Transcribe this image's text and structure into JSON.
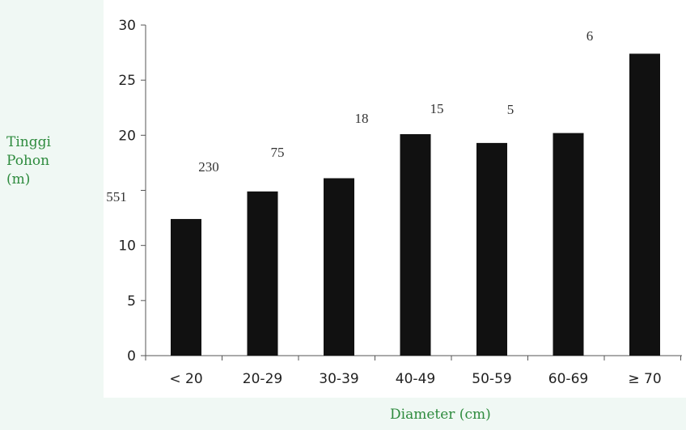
{
  "chart_data": {
    "type": "bar",
    "categories": [
      "< 20",
      "20-29",
      "30-39",
      "40-49",
      "50-59",
      "60-69",
      "≥ 70"
    ],
    "values": [
      12.4,
      14.9,
      16.1,
      20.1,
      19.3,
      20.2,
      27.4
    ],
    "annotations": [
      "551",
      "230",
      "75",
      "18",
      "15",
      "5",
      "6"
    ],
    "ylabel_lines": [
      "Tinggi",
      "Pohon",
      "(m)"
    ],
    "xlabel": "Diameter (cm)",
    "ylim": [
      0,
      30
    ],
    "yticks": [
      0,
      5,
      10,
      15,
      20,
      25,
      30
    ],
    "yticklabels": [
      "0",
      "5",
      "10",
      "",
      "20",
      "25",
      "30"
    ],
    "bar_color": "#111111",
    "label_color": "#2e8b3e",
    "grid": false,
    "legend": "none"
  }
}
